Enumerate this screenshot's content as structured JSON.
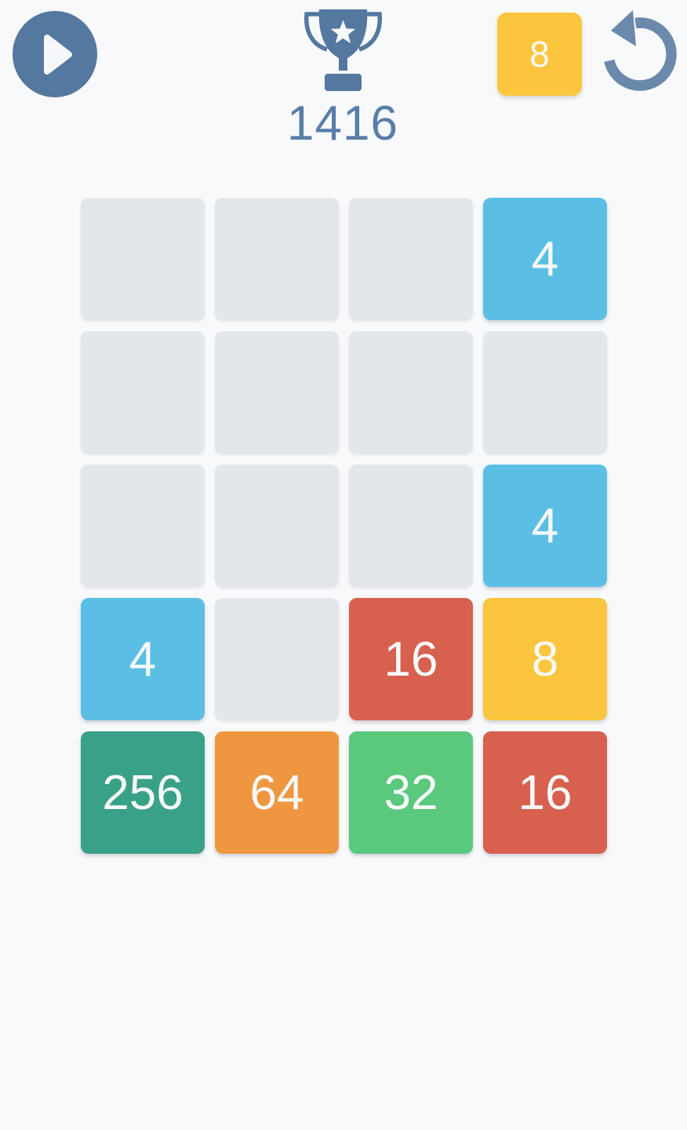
{
  "header": {
    "play_button": {
      "icon": "play-icon"
    },
    "score": {
      "icon": "trophy-icon",
      "value": "1416"
    },
    "next_tile": {
      "value": "8",
      "color": "#fbc63d"
    },
    "undo_button": {
      "icon": "undo-icon"
    }
  },
  "board": {
    "rows": 5,
    "cols": 4,
    "cells": [
      [
        null,
        null,
        null,
        4
      ],
      [
        null,
        null,
        null,
        null
      ],
      [
        null,
        null,
        null,
        4
      ],
      [
        4,
        null,
        16,
        8
      ],
      [
        256,
        64,
        32,
        16
      ]
    ]
  },
  "colors": {
    "background": "#f8f9fa",
    "empty_cell": "#e3e6eb",
    "accent": "#54789f",
    "score_text": "#597da8",
    "tile_text": "#f7f9f8",
    "tile_colors": {
      "4": "#5bbfe5",
      "8": "#fbc63d",
      "16": "#d7604f",
      "32": "#5ac87d",
      "64": "#ee9740",
      "256": "#3aa189"
    }
  }
}
